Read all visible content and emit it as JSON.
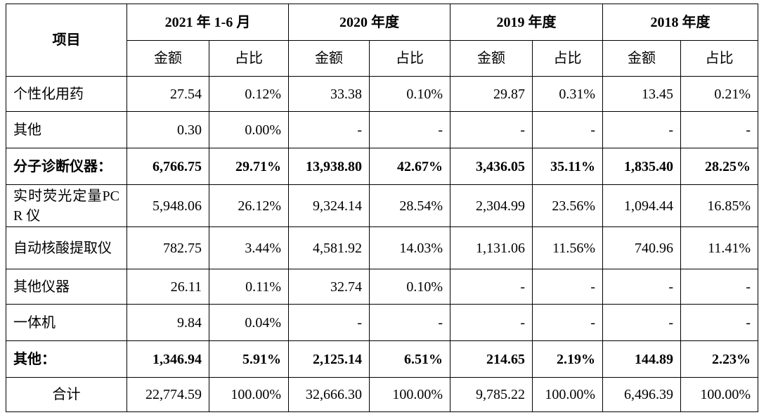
{
  "header": {
    "item": "项目",
    "periods": [
      {
        "label": "2021 年 1-6 月",
        "amount": "金额",
        "ratio": "占比"
      },
      {
        "label": "2020 年度",
        "amount": "金额",
        "ratio": "占比"
      },
      {
        "label": "2019 年度",
        "amount": "金额",
        "ratio": "占比"
      },
      {
        "label": "2018 年度",
        "amount": "金额",
        "ratio": "占比"
      }
    ]
  },
  "table": {
    "rows": [
      {
        "label": "个性化用药",
        "cells": [
          "27.54",
          "0.12%",
          "33.38",
          "0.10%",
          "29.87",
          "0.31%",
          "13.45",
          "0.21%"
        ]
      },
      {
        "label": "其他",
        "cells": [
          "0.30",
          "0.00%",
          "-",
          "-",
          "-",
          "-",
          "-",
          "-"
        ]
      },
      {
        "label": "分子诊断仪器：",
        "bold": true,
        "cells": [
          "6,766.75",
          "29.71%",
          "13,938.80",
          "42.67%",
          "3,436.05",
          "35.11%",
          "1,835.40",
          "28.25%"
        ]
      },
      {
        "label": "实时荧光定量PCR 仪",
        "cells": [
          "5,948.06",
          "26.12%",
          "9,324.14",
          "28.54%",
          "2,304.99",
          "23.56%",
          "1,094.44",
          "16.85%"
        ]
      },
      {
        "label": "自动核酸提取仪",
        "cells": [
          "782.75",
          "3.44%",
          "4,581.92",
          "14.03%",
          "1,131.06",
          "11.56%",
          "740.96",
          "11.41%"
        ]
      },
      {
        "label": "其他仪器",
        "cells": [
          "26.11",
          "0.11%",
          "32.74",
          "0.10%",
          "-",
          "-",
          "-",
          "-"
        ]
      },
      {
        "label": "一体机",
        "cells": [
          "9.84",
          "0.04%",
          "-",
          "-",
          "-",
          "-",
          "-",
          "-"
        ]
      },
      {
        "label": "其他：",
        "bold": true,
        "cells": [
          "1,346.94",
          "5.91%",
          "2,125.14",
          "6.51%",
          "214.65",
          "2.19%",
          "144.89",
          "2.23%"
        ]
      },
      {
        "label": "合计",
        "total": true,
        "cells": [
          "22,774.59",
          "100.00%",
          "32,666.30",
          "100.00%",
          "9,785.22",
          "100.00%",
          "6,496.39",
          "100.00%"
        ]
      }
    ]
  }
}
